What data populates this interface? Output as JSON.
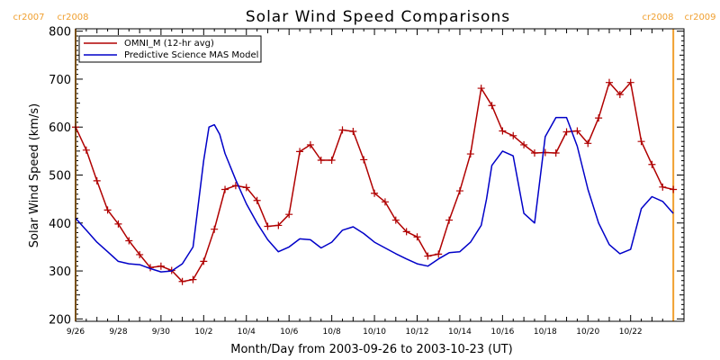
{
  "chart_data": {
    "type": "line",
    "title": "Solar Wind Speed Comparisons",
    "xlabel": "Month/Day from 2003-09-26 to 2003-10-23 (UT)",
    "ylabel": "Solar Wind Speed (km/s)",
    "xlim": [
      "2003-09-26T00:00",
      "2003-10-24T12:00"
    ],
    "ylim": [
      195,
      805
    ],
    "yticks": [
      200,
      300,
      400,
      500,
      600,
      700,
      800
    ],
    "xtick_labels": [
      "9/26",
      "9/28",
      "9/30",
      "10/2",
      "10/4",
      "10/6",
      "10/8",
      "10/10",
      "10/12",
      "10/14",
      "10/16",
      "10/18",
      "10/20",
      "10/22"
    ],
    "legend_position": "top-left",
    "carrington_markers": [
      {
        "date": "2003-09-26T00:00",
        "left_label": "cr2007",
        "right_label": "cr2008"
      },
      {
        "date": "2003-10-24T00:00",
        "left_label": "cr2008",
        "right_label": "cr2009"
      }
    ],
    "series": [
      {
        "name": "OMNI_M (12-hr avg)",
        "color": "#b00000",
        "marker": "plus",
        "x": [
          "2003-09-26T00:00",
          "2003-09-26T12:00",
          "2003-09-27T00:00",
          "2003-09-27T12:00",
          "2003-09-28T00:00",
          "2003-09-28T12:00",
          "2003-09-29T00:00",
          "2003-09-29T12:00",
          "2003-09-30T00:00",
          "2003-09-30T12:00",
          "2003-10-01T00:00",
          "2003-10-01T12:00",
          "2003-10-02T00:00",
          "2003-10-02T12:00",
          "2003-10-03T00:00",
          "2003-10-03T12:00",
          "2003-10-04T00:00",
          "2003-10-04T12:00",
          "2003-10-05T00:00",
          "2003-10-05T12:00",
          "2003-10-06T00:00",
          "2003-10-06T12:00",
          "2003-10-07T00:00",
          "2003-10-07T12:00",
          "2003-10-08T00:00",
          "2003-10-08T12:00",
          "2003-10-09T00:00",
          "2003-10-09T12:00",
          "2003-10-10T00:00",
          "2003-10-10T12:00",
          "2003-10-11T00:00",
          "2003-10-11T12:00",
          "2003-10-12T00:00",
          "2003-10-12T12:00",
          "2003-10-13T00:00",
          "2003-10-13T12:00",
          "2003-10-14T00:00",
          "2003-10-14T12:00",
          "2003-10-15T00:00",
          "2003-10-15T12:00",
          "2003-10-16T00:00",
          "2003-10-16T12:00",
          "2003-10-17T00:00",
          "2003-10-17T12:00",
          "2003-10-18T00:00",
          "2003-10-18T12:00",
          "2003-10-19T00:00",
          "2003-10-19T12:00",
          "2003-10-20T00:00",
          "2003-10-20T12:00",
          "2003-10-21T00:00",
          "2003-10-21T12:00",
          "2003-10-22T00:00",
          "2003-10-22T12:00",
          "2003-10-23T00:00",
          "2003-10-23T12:00",
          "2003-10-24T00:00"
        ],
        "y": [
          600,
          552,
          488,
          427,
          398,
          363,
          334,
          307,
          310,
          301,
          278,
          282,
          320,
          387,
          470,
          478,
          474,
          447,
          393,
          395,
          418,
          549,
          563,
          531,
          531,
          594,
          591,
          532,
          462,
          444,
          406,
          382,
          371,
          331,
          335,
          406,
          467,
          544,
          681,
          645,
          592,
          582,
          563,
          546,
          547,
          546,
          590,
          592,
          566,
          619,
          693,
          668,
          693,
          570,
          522,
          475,
          470
        ]
      },
      {
        "name": "Predictive Science MAS Model",
        "color": "#0000c8",
        "marker": "none",
        "x": [
          "2003-09-26T00:00",
          "2003-09-26T12:00",
          "2003-09-27T00:00",
          "2003-09-27T12:00",
          "2003-09-28T00:00",
          "2003-09-28T12:00",
          "2003-09-29T00:00",
          "2003-09-29T12:00",
          "2003-09-30T00:00",
          "2003-09-30T12:00",
          "2003-10-01T00:00",
          "2003-10-01T12:00",
          "2003-10-02T00:00",
          "2003-10-02T06:00",
          "2003-10-02T12:00",
          "2003-10-02T18:00",
          "2003-10-03T00:00",
          "2003-10-03T12:00",
          "2003-10-04T00:00",
          "2003-10-04T12:00",
          "2003-10-05T00:00",
          "2003-10-05T12:00",
          "2003-10-06T00:00",
          "2003-10-06T12:00",
          "2003-10-07T00:00",
          "2003-10-07T12:00",
          "2003-10-08T00:00",
          "2003-10-08T12:00",
          "2003-10-09T00:00",
          "2003-10-09T12:00",
          "2003-10-10T00:00",
          "2003-10-10T12:00",
          "2003-10-11T00:00",
          "2003-10-11T12:00",
          "2003-10-12T00:00",
          "2003-10-12T12:00",
          "2003-10-13T00:00",
          "2003-10-13T12:00",
          "2003-10-14T00:00",
          "2003-10-14T12:00",
          "2003-10-15T00:00",
          "2003-10-15T06:00",
          "2003-10-15T12:00",
          "2003-10-16T00:00",
          "2003-10-16T12:00",
          "2003-10-17T00:00",
          "2003-10-17T12:00",
          "2003-10-18T00:00",
          "2003-10-18T12:00",
          "2003-10-19T00:00",
          "2003-10-19T12:00",
          "2003-10-20T00:00",
          "2003-10-20T12:00",
          "2003-10-21T00:00",
          "2003-10-21T12:00",
          "2003-10-22T00:00",
          "2003-10-22T12:00",
          "2003-10-23T00:00",
          "2003-10-23T12:00",
          "2003-10-24T00:00"
        ],
        "y": [
          410,
          385,
          360,
          340,
          320,
          315,
          313,
          305,
          298,
          300,
          315,
          350,
          530,
          600,
          605,
          585,
          545,
          490,
          440,
          400,
          365,
          340,
          350,
          367,
          365,
          348,
          360,
          385,
          392,
          378,
          360,
          348,
          336,
          325,
          315,
          310,
          325,
          338,
          340,
          360,
          395,
          450,
          520,
          550,
          540,
          420,
          400,
          580,
          620,
          620,
          560,
          470,
          400,
          355,
          336,
          345,
          430,
          455,
          445,
          420
        ]
      }
    ]
  }
}
